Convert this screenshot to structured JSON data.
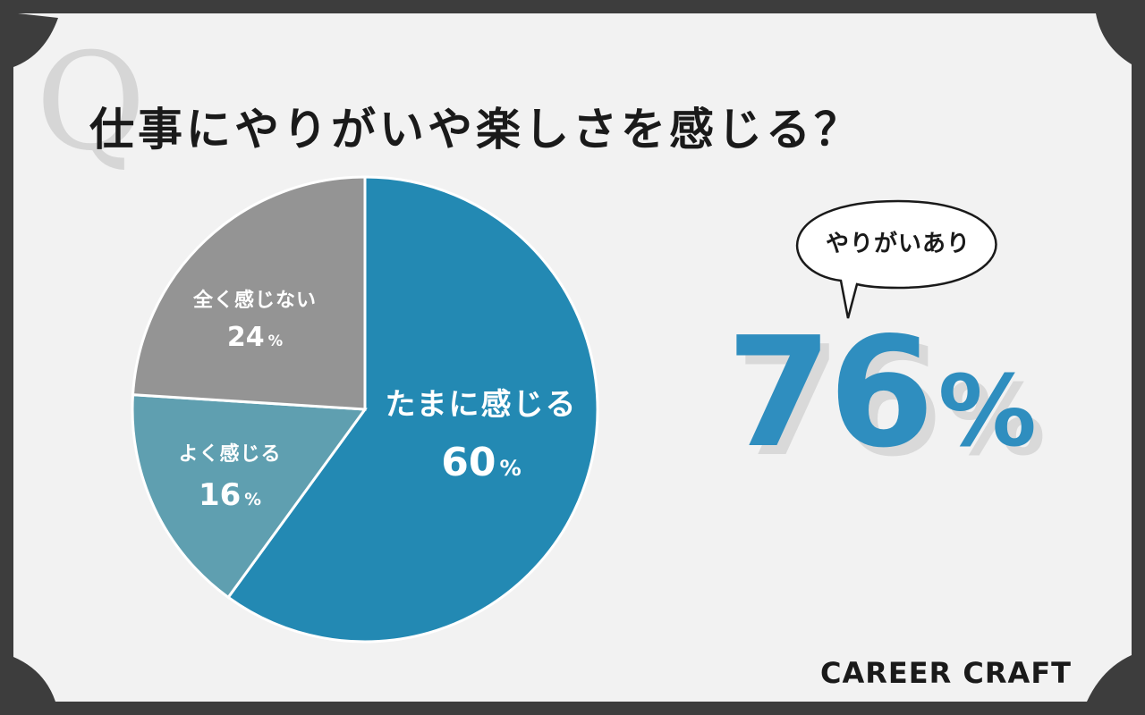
{
  "title": "仕事にやりがいや楽しさを感じる？",
  "q_mark": "Q",
  "colors": {
    "background": "#3d3d3d",
    "card": "#f2f2f2",
    "accent": "#2f8ebf"
  },
  "chart_data": {
    "type": "pie",
    "slices": [
      {
        "label": "たまに感じる",
        "value": 60,
        "unit": "%",
        "color": "#2389b3"
      },
      {
        "label": "よく感じる",
        "value": 16,
        "unit": "%",
        "color": "#5f9fb0"
      },
      {
        "label": "全く感じない",
        "value": 24,
        "unit": "%",
        "color": "#949494"
      }
    ]
  },
  "summary": {
    "bubble_text": "やりがいあり",
    "number": "76",
    "unit": "%"
  },
  "brand": "CAREER CRAFT"
}
